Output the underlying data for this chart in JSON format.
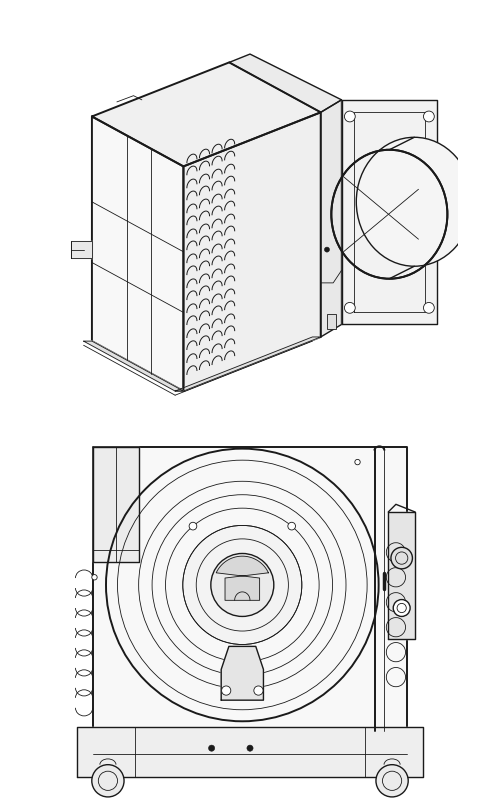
{
  "bg_color": "#ffffff",
  "lc": "#1a1a1a",
  "lw": 1.0,
  "lwt": 0.6,
  "lwk": 1.4
}
